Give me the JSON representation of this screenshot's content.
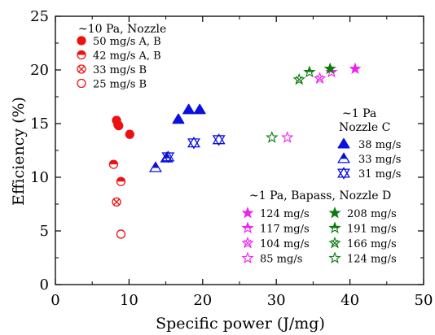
{
  "chart_data": {
    "type": "scatter",
    "xlabel": "Specific power (J/mg)",
    "ylabel": "Efficiency (%)",
    "xlim": [
      0,
      50
    ],
    "ylim": [
      0,
      25
    ],
    "xticks": [
      "0",
      "10",
      "20",
      "30",
      "40",
      "50"
    ],
    "yticks": [
      "0",
      "5",
      "10",
      "15",
      "20",
      "25"
    ],
    "grid": false,
    "colors": {
      "red": "#ee1111",
      "blue": "#0a10dd",
      "magenta": "#ee22ee",
      "green": "#0c7a0c"
    },
    "groups": [
      {
        "header_lines": [
          "~10 Pa,     Nozzle"
        ],
        "legend_position": "top-left",
        "series": [
          {
            "name": "50 mg/s   A,   B",
            "marker": "circle-filled",
            "color": "#ee1111",
            "points": [
              [
                8.3,
                15.3
              ],
              [
                8.6,
                14.8
              ],
              [
                8.5,
                14.9
              ],
              [
                10.1,
                14.0
              ]
            ]
          },
          {
            "name": "42 mg/s   A,   B",
            "marker": "circle-half",
            "color": "#ee1111",
            "points": [
              [
                7.9,
                11.2
              ],
              [
                8.9,
                9.6
              ]
            ]
          },
          {
            "name": "33 mg/s   B",
            "marker": "circle-cross",
            "color": "#ee1111",
            "points": [
              [
                8.3,
                7.7
              ]
            ]
          },
          {
            "name": "25 mg/s   B",
            "marker": "circle-open",
            "color": "#ee1111",
            "points": [
              [
                8.9,
                4.7
              ]
            ]
          }
        ]
      },
      {
        "header_lines": [
          "~1 Pa",
          "Nozzle  C"
        ],
        "legend_position": "right",
        "series": [
          {
            "name": "38 mg/s",
            "marker": "triangle-filled",
            "color": "#0a10dd",
            "points": [
              [
                16.7,
                15.4
              ],
              [
                18.1,
                16.3
              ],
              [
                19.6,
                16.3
              ]
            ]
          },
          {
            "name": "33 mg/s",
            "marker": "triangle-half",
            "color": "#0a10dd",
            "points": [
              [
                13.6,
                10.9
              ],
              [
                15.1,
                11.8
              ]
            ]
          },
          {
            "name": "31 mg/s",
            "marker": "triangle-double",
            "color": "#0a10dd",
            "points": [
              [
                15.3,
                11.9
              ],
              [
                18.8,
                13.2
              ],
              [
                22.2,
                13.5
              ]
            ]
          }
        ]
      },
      {
        "header_lines": [
          "~1 Pa, Bapass, Nozzle D"
        ],
        "legend_position": "bottom-right",
        "series": [
          {
            "name": "124 mg/s",
            "marker": "star-filled",
            "color": "#ee22ee",
            "points": [
              [
                40.7,
                20.1
              ]
            ]
          },
          {
            "name": "117 mg/s",
            "marker": "star-half",
            "color": "#ee22ee",
            "points": [
              [
                37.5,
                19.8
              ]
            ]
          },
          {
            "name": "104 mg/s",
            "marker": "star-cross",
            "color": "#ee22ee",
            "points": [
              [
                35.9,
                19.2
              ]
            ]
          },
          {
            "name": "85 mg/s",
            "marker": "star-open",
            "color": "#ee22ee",
            "points": [
              [
                31.5,
                13.7
              ]
            ]
          },
          {
            "name": "208 mg/s",
            "marker": "star-filled",
            "color": "#0c7a0c",
            "points": [
              [
                37.3,
                20.1
              ]
            ]
          },
          {
            "name": "191 mg/s",
            "marker": "star-half",
            "color": "#0c7a0c",
            "points": [
              [
                34.5,
                19.8
              ]
            ]
          },
          {
            "name": "166 mg/s",
            "marker": "star-cross",
            "color": "#0c7a0c",
            "points": [
              [
                33.1,
                19.1
              ]
            ]
          },
          {
            "name": "124 mg/s",
            "marker": "star-open",
            "color": "#0c7a0c",
            "points": [
              [
                29.4,
                13.7
              ]
            ]
          }
        ]
      }
    ]
  }
}
